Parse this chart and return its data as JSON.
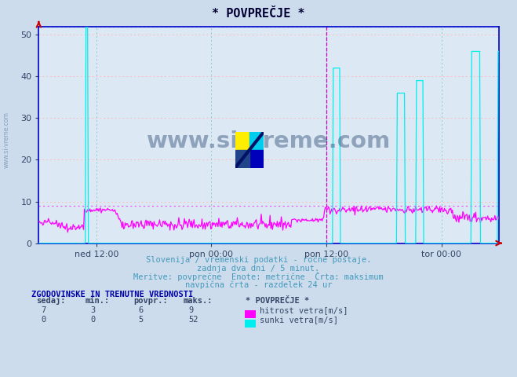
{
  "title": "* POVPREČJE *",
  "bg_color": "#ccdcec",
  "plot_bg_color": "#dce8f4",
  "grid_color_h": "#ffbbbb",
  "grid_color_v": "#88cccc",
  "ylim": [
    0,
    52
  ],
  "yticks": [
    0,
    10,
    20,
    30,
    40,
    50
  ],
  "xlabel_ticks": [
    "ned 12:00",
    "pon 00:00",
    "pon 12:00",
    "tor 00:00"
  ],
  "xlabel_tick_positions": [
    0.125,
    0.375,
    0.625,
    0.875
  ],
  "line1_color": "#ff00ff",
  "line2_color": "#00eeee",
  "vline_color": "#cc00cc",
  "border_color": "#0000cc",
  "arrow_color": "#cc0000",
  "subtitle_color": "#4499bb",
  "legend_title_color": "#0000aa",
  "legend_text_color": "#334466",
  "watermark_color": "#1a3a6a",
  "left_watermark_color": "#6688aa",
  "subtitle1": "Slovenija / vremenski podatki - ročne postaje.",
  "subtitle2": "zadnja dva dni / 5 minut.",
  "subtitle3": "Meritve: povprečne  Enote: metrične  Črta: maksimum",
  "subtitle4": "navpična črta - razdelek 24 ur",
  "legend_title": "ZGODOVINSKE IN TRENUTNE VREDNOSTI",
  "legend_data": [
    [
      7,
      3,
      6,
      9,
      "hitrost vetra[m/s]"
    ],
    [
      0,
      0,
      5,
      52,
      "sunki vetra[m/s]"
    ]
  ],
  "watermark": "www.si-vreme.com",
  "n_points": 576,
  "max1_value": 9,
  "max2_value": 52
}
